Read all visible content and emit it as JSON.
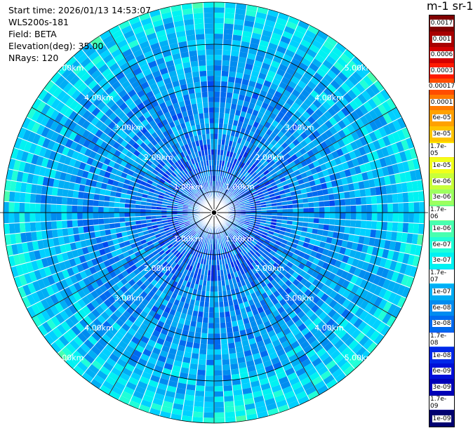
{
  "info": {
    "start_time": "Start time: 2026/01/13 14:53:07",
    "device": "WLS200s-181",
    "field": "Field: BETA",
    "elevation": "Elevation(deg): 35.00",
    "nrays": "NRays: 120"
  },
  "colorbar": {
    "title": "m-1 sr-1",
    "levels": [
      {
        "label": "0.0017",
        "color": "#800000"
      },
      {
        "label": "0.001",
        "color": "#a80000"
      },
      {
        "label": "0.0006",
        "color": "#d40000"
      },
      {
        "label": "0.0003",
        "color": "#ff1a00"
      },
      {
        "label": "0.00017",
        "color": "#ff4d00"
      },
      {
        "label": "0.0001",
        "color": "#ff7a00"
      },
      {
        "label": "6e-05",
        "color": "#ffa100"
      },
      {
        "label": "3e-05",
        "color": "#ffc400"
      },
      {
        "label": "1.7e-05",
        "color": "#ffe600"
      },
      {
        "label": "1e-05",
        "color": "#f0ff1a"
      },
      {
        "label": "6e-06",
        "color": "#c8ff3a"
      },
      {
        "label": "3e-06",
        "color": "#9cff60"
      },
      {
        "label": "1.7e-06",
        "color": "#70ff88"
      },
      {
        "label": "1e-06",
        "color": "#48ffb0"
      },
      {
        "label": "6e-07",
        "color": "#20ffd8"
      },
      {
        "label": "3e-07",
        "color": "#00f2f2"
      },
      {
        "label": "1.7e-07",
        "color": "#00d0ff"
      },
      {
        "label": "1e-07",
        "color": "#00aef5"
      },
      {
        "label": "6e-08",
        "color": "#008cf0"
      },
      {
        "label": "3e-08",
        "color": "#006af0"
      },
      {
        "label": "1.7e-08",
        "color": "#0048f0"
      },
      {
        "label": "1e-08",
        "color": "#0028e8"
      },
      {
        "label": "6e-09",
        "color": "#0010d8"
      },
      {
        "label": "3e-09",
        "color": "#0000b8"
      },
      {
        "label": "1.7e-09",
        "color": "#000090"
      },
      {
        "label": "1e-09",
        "color": "#000070"
      }
    ]
  },
  "chart_data": {
    "type": "heatmap",
    "projection": "polar (PPI scan)",
    "field": "BETA",
    "elevation_deg": 35.0,
    "n_rays": 120,
    "max_range_km": 5.0,
    "range_rings_km": [
      1.0,
      2.0,
      3.0,
      4.0,
      5.0
    ],
    "ring_labels": [
      "1.00km",
      "2.00km",
      "3.00km",
      "4.00km",
      "5.00km"
    ],
    "spoke_angles_deg": [
      0,
      30,
      60,
      90,
      120,
      150,
      180,
      210,
      240,
      270,
      300,
      330
    ],
    "color_scale": "log",
    "value_range": [
      1e-09,
      0.0017
    ],
    "radial_profile": [
      {
        "range_km": 0.5,
        "beta_typical": 3e-08
      },
      {
        "range_km": 1.0,
        "beta_typical": 3e-08
      },
      {
        "range_km": 1.5,
        "beta_typical": 3e-08
      },
      {
        "range_km": 2.0,
        "beta_typical": 6e-08
      },
      {
        "range_km": 2.5,
        "beta_typical": 6e-08
      },
      {
        "range_km": 3.0,
        "beta_typical": 6e-08
      },
      {
        "range_km": 3.5,
        "beta_typical": 1e-07
      },
      {
        "range_km": 4.0,
        "beta_typical": 1e-07
      },
      {
        "range_km": 4.5,
        "beta_typical": 1.7e-07
      },
      {
        "range_km": 5.0,
        "beta_typical": 3e-07
      }
    ]
  }
}
